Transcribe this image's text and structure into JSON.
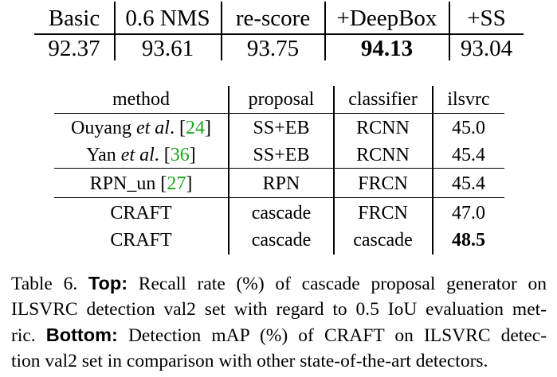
{
  "recall_table": {
    "headers": [
      "Basic",
      "0.6 NMS",
      "re-score",
      "+DeepBox",
      "+SS"
    ],
    "values": [
      "92.37",
      "93.61",
      "93.75",
      "94.13",
      "93.04"
    ],
    "best_index": 3
  },
  "map_table": {
    "headers": [
      "method",
      "proposal",
      "classifier",
      "ilsvrc"
    ],
    "rows": [
      {
        "method_pre": "Ouyang ",
        "method_em": "et al",
        "method_post": ". [",
        "cite": "24",
        "method_end": "]",
        "proposal": "SS+EB",
        "classifier": "RCNN",
        "ilsvrc": "45.0"
      },
      {
        "method_pre": "Yan ",
        "method_em": "et al",
        "method_post": ". [",
        "cite": "36",
        "method_end": "]",
        "proposal": "SS+EB",
        "classifier": "RCNN",
        "ilsvrc": "45.4"
      },
      {
        "method_pre": "RPN_un [",
        "method_em": "",
        "method_post": "",
        "cite": "27",
        "method_end": "]",
        "proposal": "RPN",
        "classifier": "FRCN",
        "ilsvrc": "45.4"
      },
      {
        "method_pre": "CRAFT",
        "method_em": "",
        "method_post": "",
        "cite": "",
        "method_end": "",
        "proposal": "cascade",
        "classifier": "FRCN",
        "ilsvrc": "47.0"
      },
      {
        "method_pre": "CRAFT",
        "method_em": "",
        "method_post": "",
        "cite": "",
        "method_end": "",
        "proposal": "cascade",
        "classifier": "cascade",
        "ilsvrc": "48.5"
      }
    ],
    "best_row": 4
  },
  "caption": {
    "label": "Table 6.",
    "top_label": "Top:",
    "top_text_1": "Recall rate (%) of cascade proposal generator on",
    "top_text_2": "ILSVRC detection val2 set with regard to 0.5 IoU evaluation met-",
    "top_text_3a": "ric.",
    "bottom_label": "Bottom:",
    "bottom_text_1": "Detection mAP (%) of CRAFT on ILSVRC detec-",
    "bottom_text_2": "tion val2 set in comparison with other state-of-the-art detectors."
  }
}
